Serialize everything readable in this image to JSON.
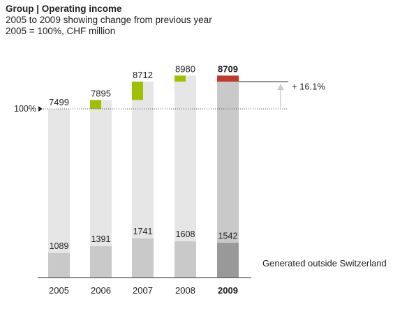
{
  "chart_data": {
    "type": "bar",
    "title": "Group | Operating income",
    "subtitle_lines": [
      "2005 to 2009 showing change from previous year",
      "2005 = 100%, CHF million"
    ],
    "categories": [
      "2005",
      "2006",
      "2007",
      "2008",
      "2009"
    ],
    "highlight_category": "2009",
    "series": [
      {
        "values": [
          7499,
          7895,
          8712,
          8980,
          8709
        ]
      },
      {
        "name": "Generated outside Switzerland",
        "values": [
          1089,
          1391,
          1741,
          1608,
          1542
        ]
      }
    ],
    "changes_from_previous_year": [
      null,
      396,
      817,
      268,
      -271
    ],
    "reference_label": "100%",
    "total_change_label": "+ 16.1%",
    "ylim": [
      0,
      9500
    ],
    "grid": false,
    "colors": {
      "total_bar": "#e6e6e6",
      "outside_bar": "#c9c9c9",
      "outside_bar_highlight": "#999999",
      "total_bar_highlight": "#c9c9c9",
      "increase": "#9ec000",
      "decrease": "#c0392b",
      "arrow": "#cccccc"
    }
  }
}
